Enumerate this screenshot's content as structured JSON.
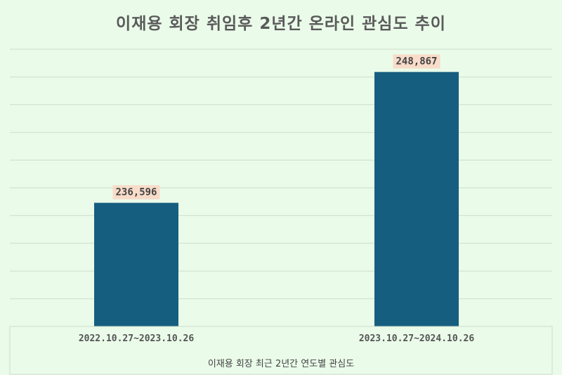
{
  "chart_data": {
    "type": "bar",
    "title": "이재용 회장 취임후 2년간 온라인 관심도 추이",
    "xlabel": "이재용 회장 최근 2년간 연도별 관심도",
    "ylabel": "",
    "categories": [
      "2022.10.27~2023.10.26",
      "2023.10.27~2024.10.26"
    ],
    "values": [
      236596,
      248867
    ],
    "data_labels": [
      "236,596",
      "248,867"
    ],
    "ylim": [
      225000,
      251000
    ],
    "grid": true,
    "legend": "none",
    "colors": {
      "background": "#eafbe9",
      "bar": "#165e7f",
      "label_bg": "#f8dcc9",
      "grid": "#cfdccd"
    }
  }
}
